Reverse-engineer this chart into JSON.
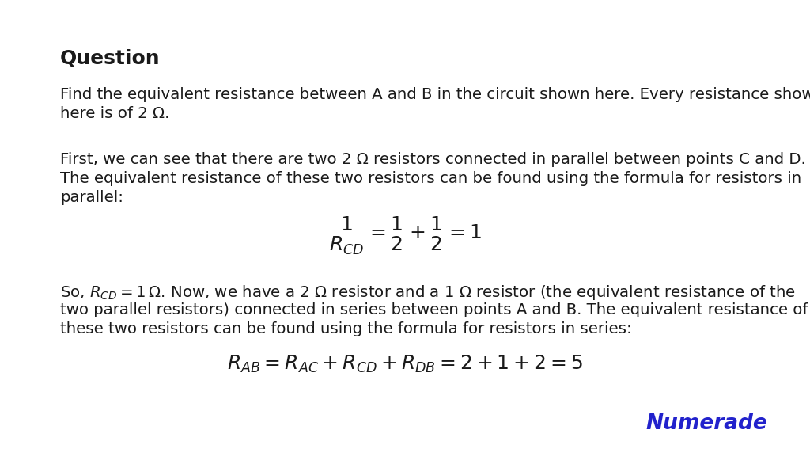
{
  "background_color": "#ffffff",
  "title_text": "Question",
  "body_color": "#1a1a1a",
  "numerade_color": "#2222cc",
  "numerade_text": "Numerade",
  "para1_line1": "Find the equivalent resistance between A and B in the circuit shown here. Every resistance shown",
  "para1_line2": "here is of 2 Ω.",
  "para2_line1": "First, we can see that there are two 2 Ω resistors connected in parallel between points C and D.",
  "para2_line2": "The equivalent resistance of these two resistors can be found using the formula for resistors in",
  "para2_line3": "parallel:",
  "para3_line0": "So, $R_{CD} = 1\\,\\Omega$. Now, we have a 2 $\\Omega$ resistor and a 1 $\\Omega$ resistor (the equivalent resistance of the",
  "para3_line1": "two parallel resistors) connected in series between points A and B. The equivalent resistance of",
  "para3_line2": "these two resistors can be found using the formula for resistors in series:"
}
